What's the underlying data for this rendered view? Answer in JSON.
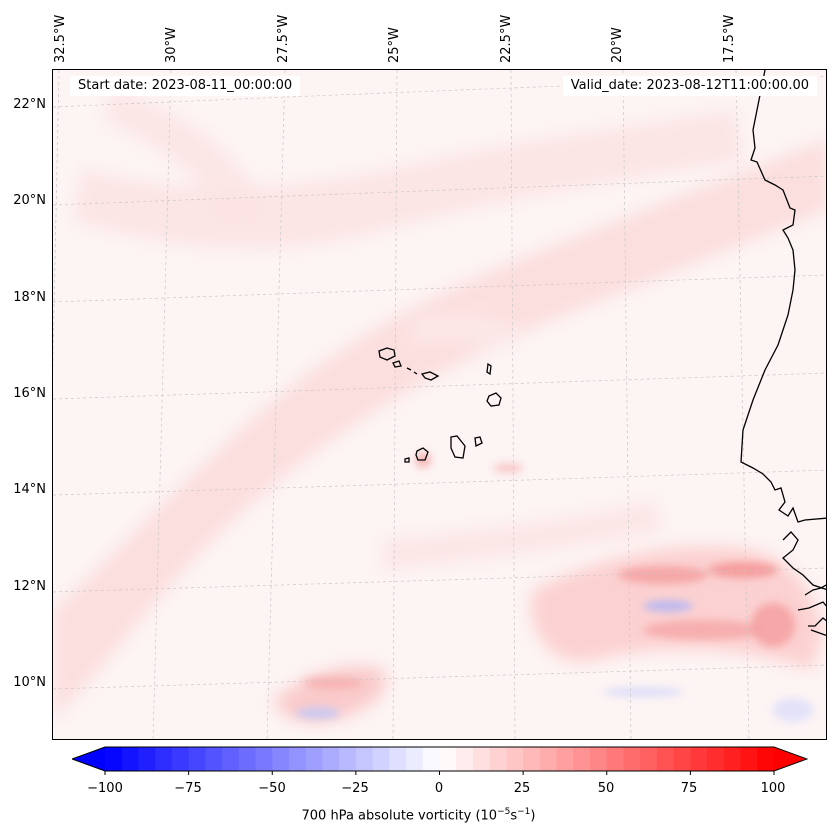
{
  "header": {
    "start_date": "Start date: 2023-08-11_00:00:00",
    "valid_date": "Valid_date: 2023-08-12T11:00:00.00"
  },
  "axes": {
    "lat_labels": [
      "22°N",
      "20°N",
      "18°N",
      "16°N",
      "14°N",
      "12°N",
      "10°N"
    ],
    "lon_labels": [
      "32.5°W",
      "30°W",
      "27.5°W",
      "25°W",
      "22.5°W",
      "20°W",
      "17.5°W"
    ]
  },
  "colorbar": {
    "ticks": [
      "−100",
      "−75",
      "−50",
      "−25",
      "0",
      "25",
      "50",
      "75",
      "100"
    ],
    "label_text": "700 hPa absolute vorticity (10",
    "label_exp1": "−5",
    "label_mid": "s",
    "label_exp2": "−1",
    "label_end": ")",
    "min": -100,
    "max": 100,
    "neg_color": "#0000ff",
    "zero_color": "#ffffff",
    "pos_color": "#ff0000"
  }
}
